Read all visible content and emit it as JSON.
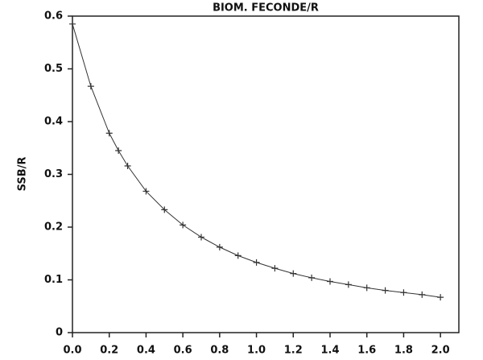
{
  "chart_data": {
    "type": "line",
    "title": "BIOM. FECONDE/R",
    "ylabel": "SSB/R",
    "x": [
      0,
      0.1,
      0.2,
      0.25,
      0.3,
      0.4,
      0.5,
      0.6,
      0.7,
      0.8,
      0.9,
      1.0,
      1.1,
      1.2,
      1.3,
      1.4,
      1.5,
      1.6,
      1.7,
      1.8,
      1.9,
      2.0
    ],
    "values": [
      0.585,
      0.467,
      0.378,
      0.345,
      0.316,
      0.268,
      0.233,
      0.204,
      0.181,
      0.162,
      0.146,
      0.133,
      0.122,
      0.112,
      0.104,
      0.097,
      0.091,
      0.085,
      0.08,
      0.076,
      0.072,
      0.067
    ],
    "color": "#333333",
    "marker": "+",
    "xlim": [
      0,
      2.1
    ],
    "ylim": [
      0,
      0.6
    ],
    "xticks": [
      {
        "value": 0,
        "label": "0.0"
      },
      0.2,
      0.4,
      0.6,
      0.8,
      {
        "value": 1,
        "label": "1.0"
      },
      1.2,
      1.4,
      1.6,
      1.8,
      {
        "value": 2,
        "label": "2.0"
      }
    ],
    "yticks": [
      0,
      0.1,
      0.2,
      0.3,
      0.4,
      0.5,
      0.6
    ],
    "grid": false
  }
}
